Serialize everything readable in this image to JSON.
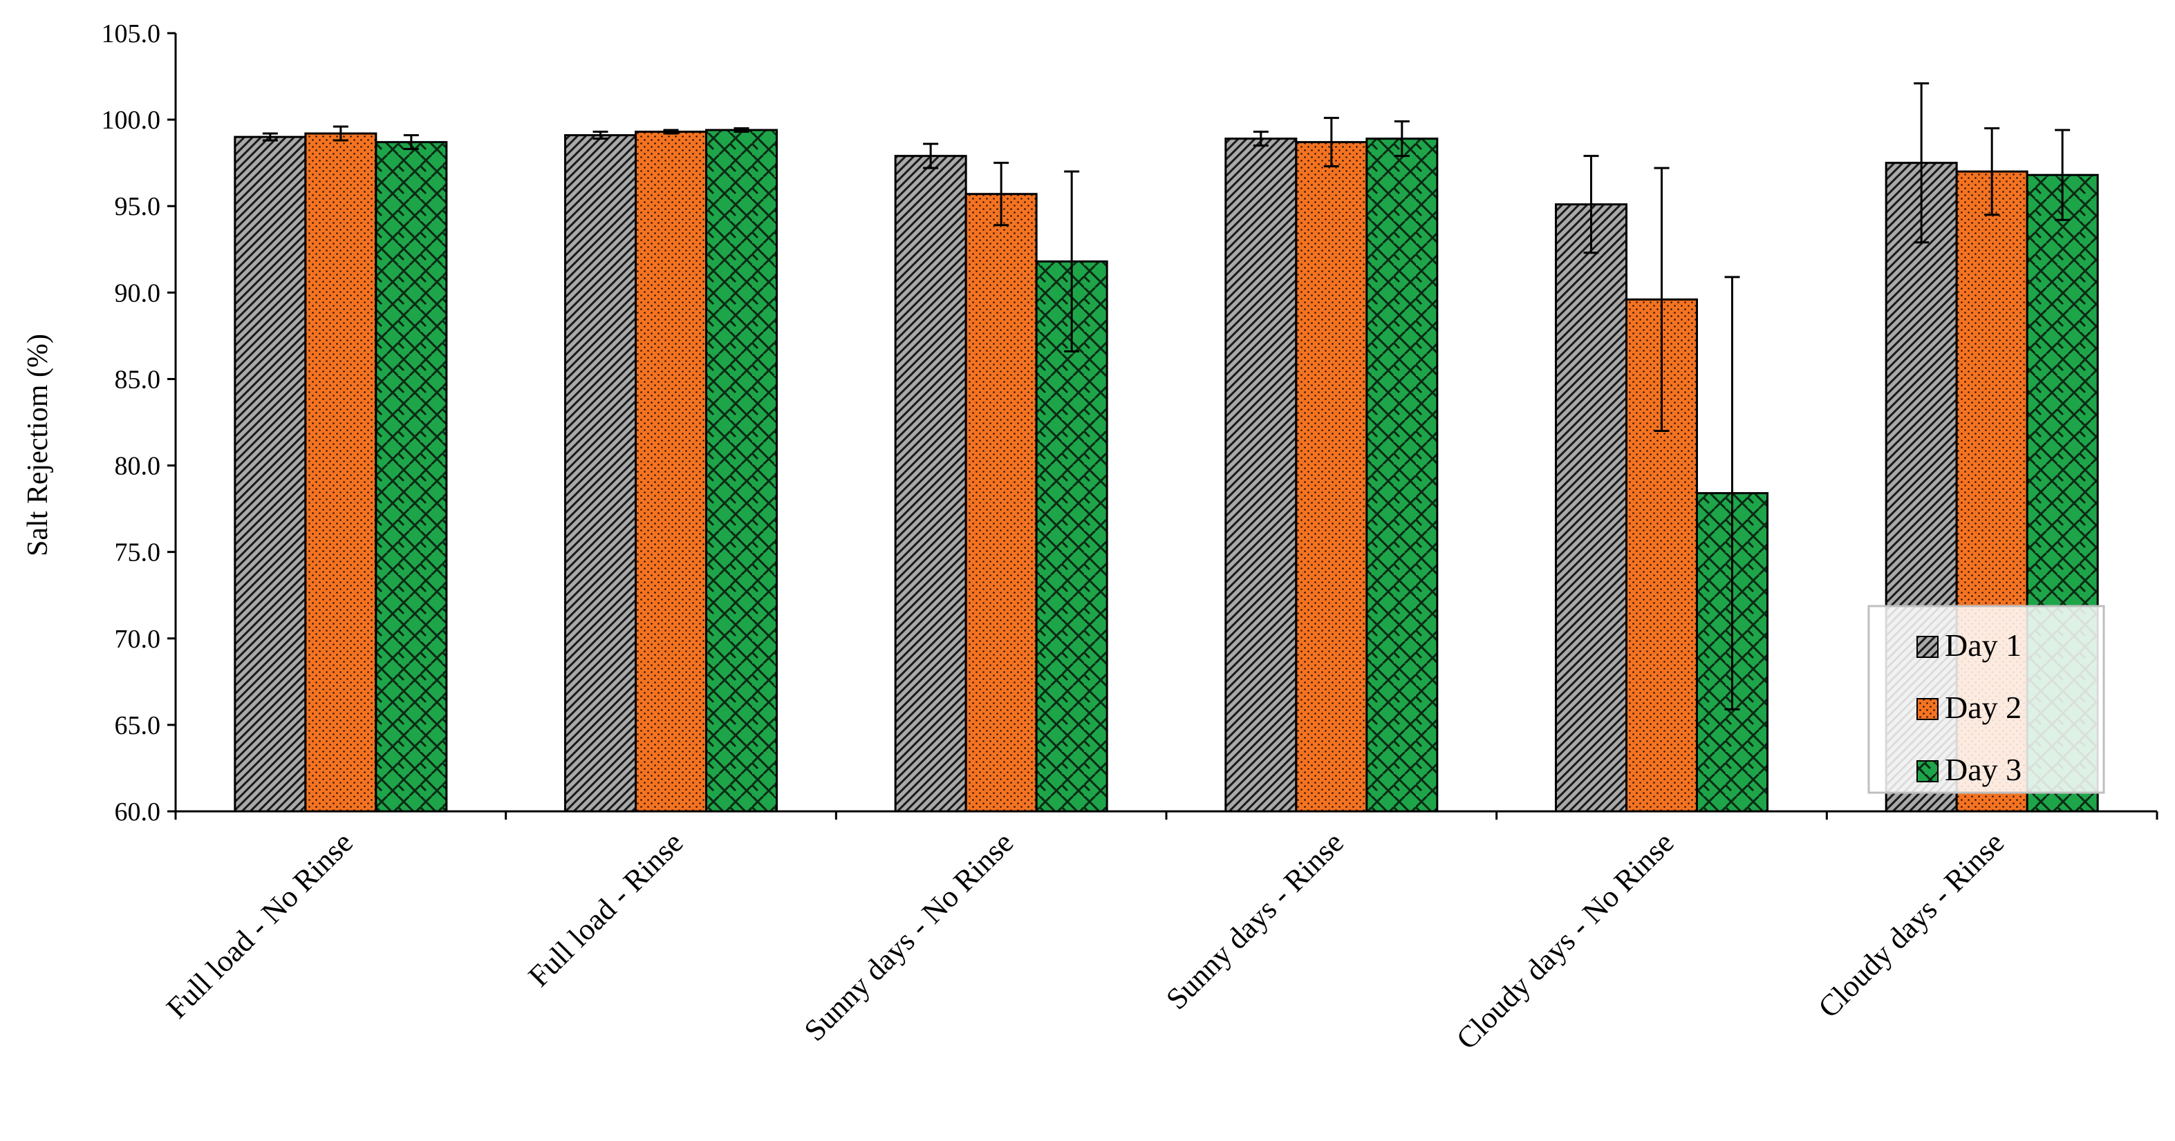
{
  "chart_data": {
    "type": "bar",
    "title": "",
    "xlabel": "",
    "ylabel": "Salt Rejectiom (%)",
    "ylim": [
      60,
      105
    ],
    "yticks": [
      "60.0",
      "65.0",
      "70.0",
      "75.0",
      "80.0",
      "85.0",
      "90.0",
      "95.0",
      "100.0",
      "105.0"
    ],
    "grid": false,
    "legend_position": "bottom-right",
    "categories": [
      "Full load - No Rinse",
      "Full load - Rinse",
      "Sunny days - No Rinse",
      "Sunny days - Rinse",
      "Cloudy days - No Rinse",
      "Cloudy days - Rinse"
    ],
    "series": [
      {
        "name": "Day 1",
        "color": "#a6a6a6",
        "pattern": "diagonal-hatch",
        "values": [
          99.0,
          99.1,
          97.9,
          98.9,
          95.1,
          97.5
        ],
        "errors": [
          0.2,
          0.2,
          0.7,
          0.4,
          2.8,
          4.6
        ]
      },
      {
        "name": "Day 2",
        "color": "#f47321",
        "pattern": "dots",
        "values": [
          99.2,
          99.3,
          95.7,
          98.7,
          89.6,
          97.0
        ],
        "errors": [
          0.4,
          0.1,
          1.8,
          1.4,
          7.6,
          2.5
        ]
      },
      {
        "name": "Day 3",
        "color": "#1ea54a",
        "pattern": "weave",
        "values": [
          98.7,
          99.4,
          91.8,
          98.9,
          78.4,
          96.8
        ],
        "errors": [
          0.4,
          0.1,
          5.2,
          1.0,
          12.5,
          2.6
        ]
      }
    ]
  }
}
